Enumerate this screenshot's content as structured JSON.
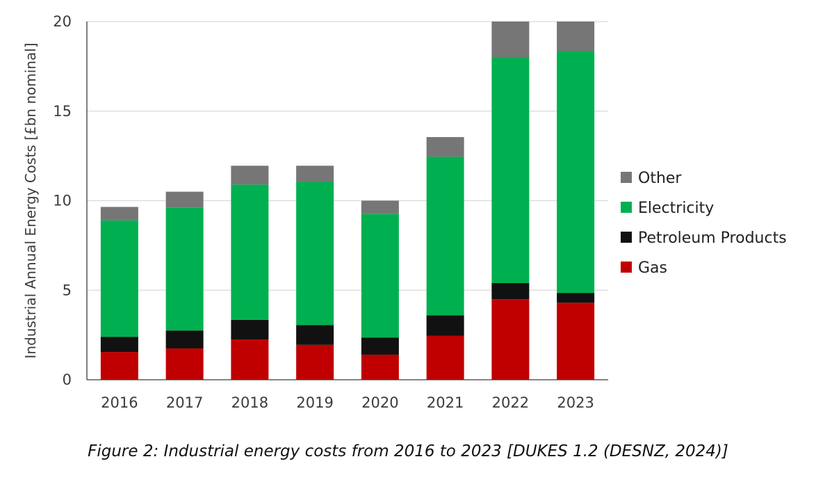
{
  "chart_data": {
    "type": "bar",
    "stacked": true,
    "categories": [
      "2016",
      "2017",
      "2018",
      "2019",
      "2020",
      "2021",
      "2022",
      "2023"
    ],
    "series": [
      {
        "name": "Gas",
        "color": "#c00000",
        "values": [
          1.55,
          1.75,
          2.25,
          1.95,
          1.4,
          2.45,
          4.5,
          4.3
        ]
      },
      {
        "name": "Petroleum Products",
        "color": "#111111",
        "values": [
          0.85,
          1.0,
          1.1,
          1.1,
          0.95,
          1.15,
          0.9,
          0.55
        ]
      },
      {
        "name": "Electricity",
        "color": "#00b050",
        "values": [
          6.5,
          6.85,
          7.55,
          8.0,
          6.9,
          8.85,
          12.6,
          13.5
        ]
      },
      {
        "name": "Other",
        "color": "#767676",
        "values": [
          0.75,
          0.9,
          1.05,
          0.9,
          0.75,
          1.1,
          2.0,
          1.65
        ]
      }
    ],
    "ylabel": "Industrial Annual Energy Costs [£bn nominal]",
    "xlabel": "",
    "ylim": [
      0,
      20
    ],
    "yticks": [
      0,
      5,
      10,
      15,
      20
    ],
    "grid": true,
    "legend_position": "right",
    "legend_order": [
      "Other",
      "Electricity",
      "Petroleum Products",
      "Gas"
    ]
  },
  "caption": "Figure 2: Industrial energy costs from 2016 to 2023 [DUKES 1.2 (DESNZ, 2024)]"
}
